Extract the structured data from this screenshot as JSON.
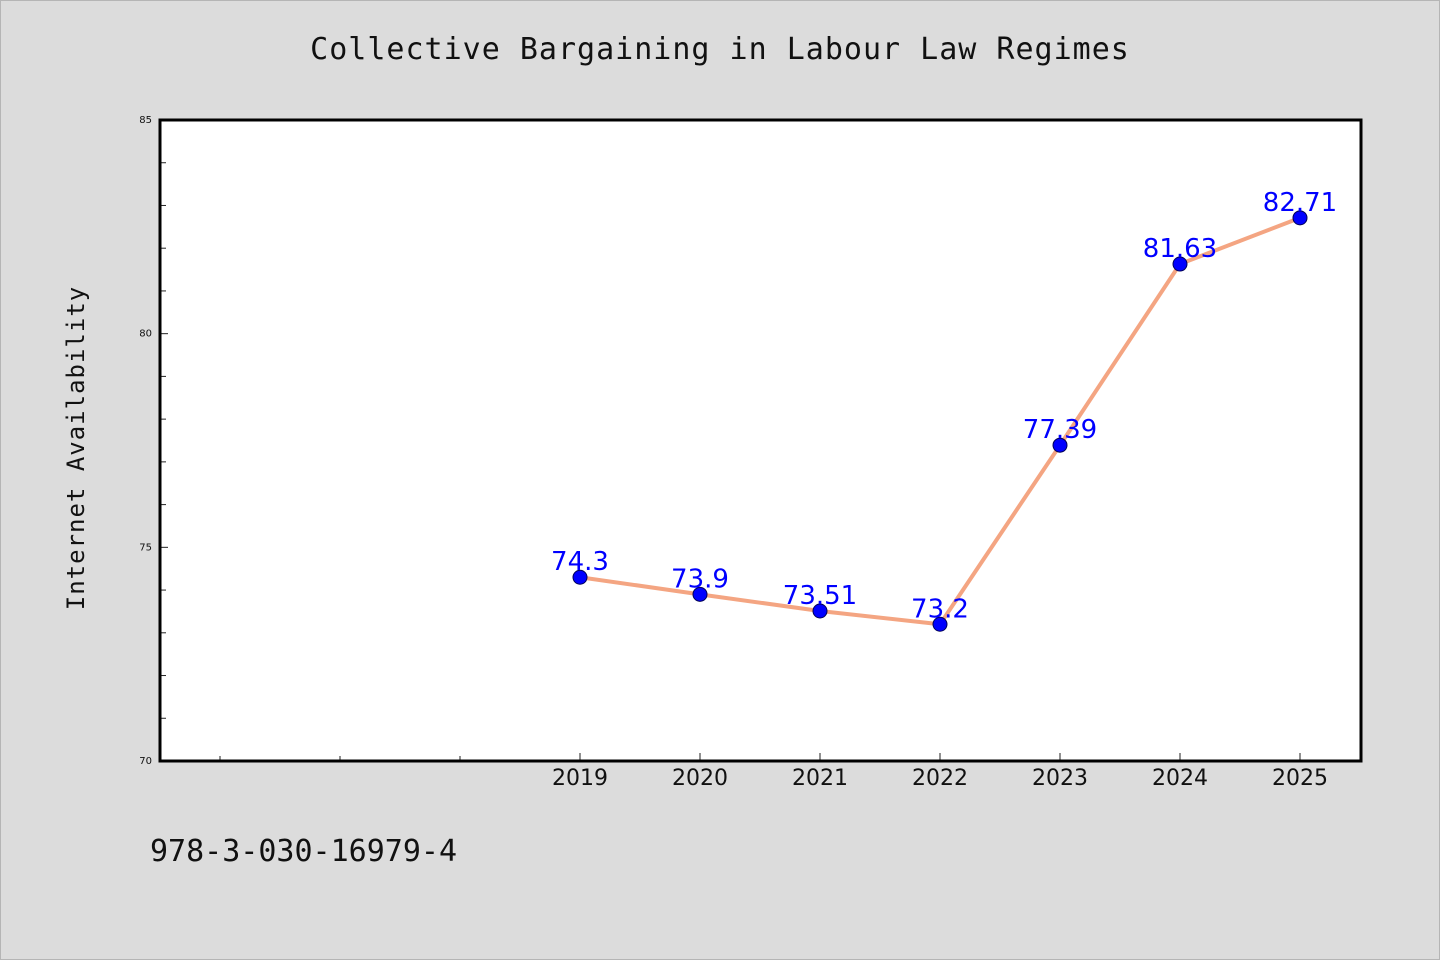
{
  "chart_data": {
    "type": "line",
    "title": "Collective Bargaining in Labour Law Regimes",
    "xlabel": "",
    "ylabel": "Internet Availability",
    "categories": [
      "2019",
      "2020",
      "2021",
      "2022",
      "2023",
      "2024",
      "2025"
    ],
    "series": [
      {
        "values": [
          74.3,
          73.9,
          73.51,
          73.2,
          77.39,
          81.63,
          82.71
        ],
        "labels": [
          "74.3",
          "73.9",
          "73.51",
          "73.2",
          "77.39",
          "81.63",
          "82.71"
        ],
        "line_color": "#f4a582",
        "marker_color": "#0000ff"
      }
    ],
    "ylim": [
      70,
      85
    ],
    "yticks": [
      "70",
      "75",
      "80",
      "85"
    ],
    "grid": false,
    "legend": "none"
  },
  "footer": {
    "isbn": "978-3-030-16979-4"
  }
}
